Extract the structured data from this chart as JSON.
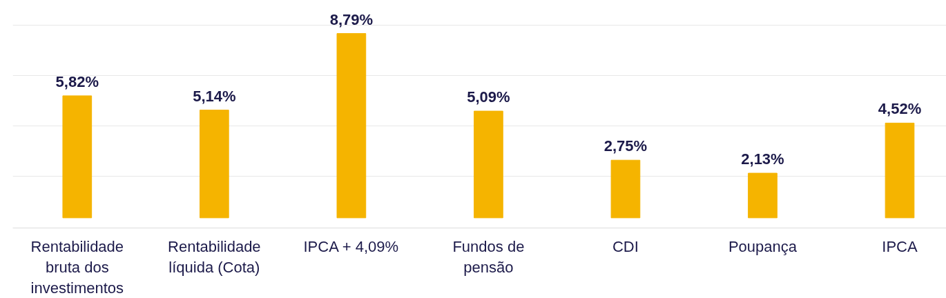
{
  "chart_data": {
    "type": "bar",
    "categories": [
      "Rentabilidade bruta dos investimentos",
      "Rentabilidade líquida (Cota)",
      "IPCA + 4,09%",
      "Fundos de pensão",
      "CDI",
      "Poupança",
      "IPCA"
    ],
    "values": [
      5.82,
      5.14,
      8.79,
      5.09,
      2.75,
      2.13,
      4.52
    ],
    "value_labels": [
      "5,82%",
      "5,14%",
      "8,79%",
      "5,09%",
      "2,75%",
      "2,13%",
      "4,52%"
    ],
    "color": "#f5b400",
    "yticks": [
      {
        "value": 2,
        "label": null
      },
      {
        "value": 4.4,
        "label": null
      },
      {
        "value": 6.8,
        "label": null
      },
      {
        "value": 9.2,
        "label": null
      }
    ],
    "grid": "y",
    "tick_labels": "x"
  }
}
